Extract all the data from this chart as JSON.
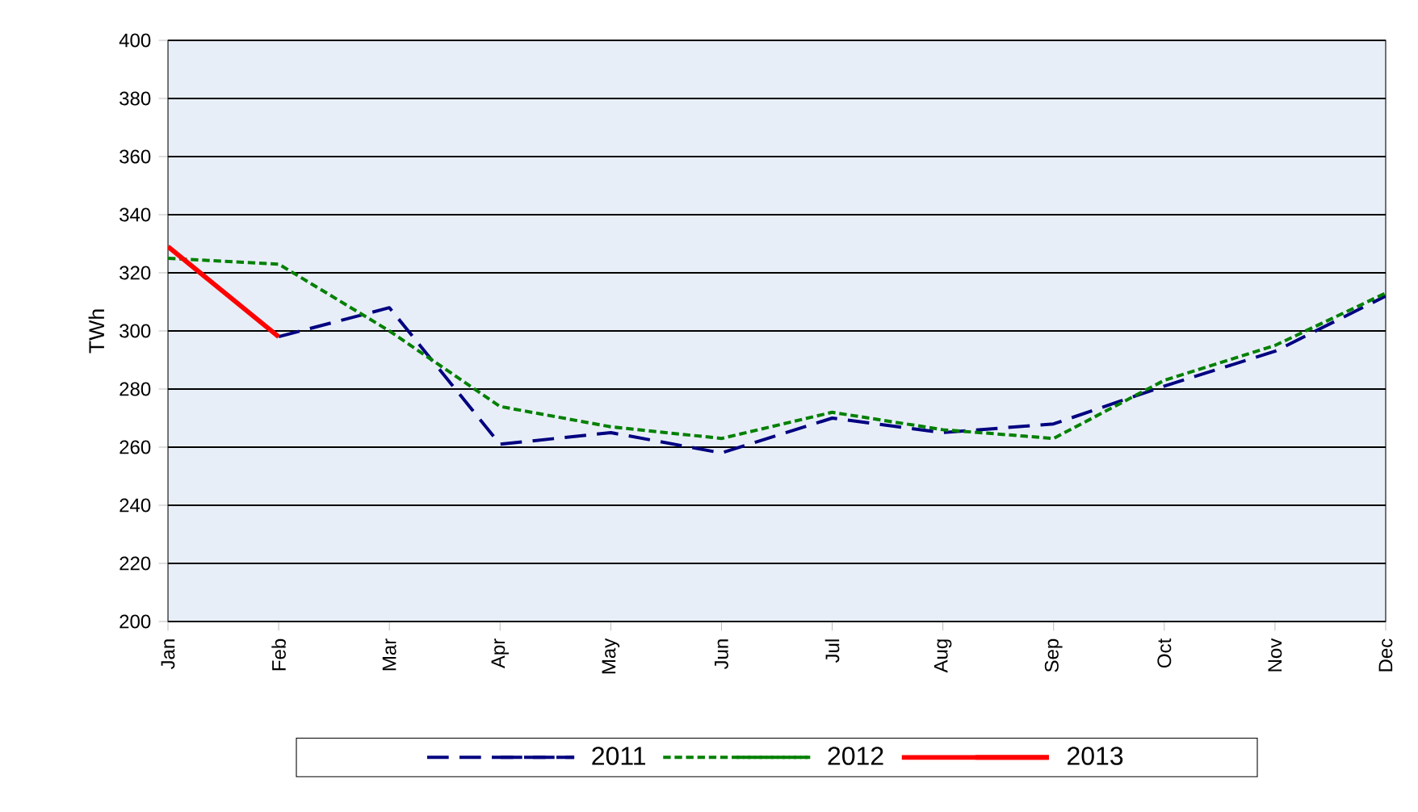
{
  "chart_data": {
    "type": "line",
    "ylabel": "TWh",
    "categories": [
      "Jan",
      "Feb",
      "Mar",
      "Apr",
      "May",
      "Jun",
      "Jul",
      "Aug",
      "Sep",
      "Oct",
      "Nov",
      "Dec"
    ],
    "series": [
      {
        "name": "2011",
        "color": "#000080",
        "line_style": "dashed",
        "values": [
          null,
          298,
          308,
          261,
          265,
          258,
          270,
          265,
          268,
          281,
          293,
          312
        ]
      },
      {
        "name": "2012",
        "color": "#008000",
        "line_style": "dotted",
        "values": [
          325,
          323,
          300,
          274,
          267,
          263,
          272,
          266,
          263,
          283,
          295,
          313
        ]
      },
      {
        "name": "2013",
        "color": "#ff0000",
        "line_style": "solid",
        "values": [
          329,
          298,
          null,
          null,
          null,
          null,
          null,
          null,
          null,
          null,
          null,
          null
        ]
      }
    ],
    "ylim": [
      200,
      400
    ],
    "yticks": [
      200,
      220,
      240,
      260,
      280,
      300,
      320,
      340,
      360,
      380,
      400
    ],
    "grid": "y",
    "legend": "bottom",
    "marker": "none"
  }
}
